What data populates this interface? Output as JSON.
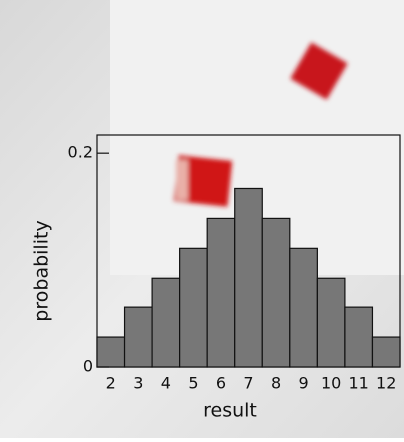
{
  "chart_data": {
    "type": "bar",
    "categories": [
      "2",
      "3",
      "4",
      "5",
      "6",
      "7",
      "8",
      "9",
      "10",
      "11",
      "12"
    ],
    "values": [
      0.028,
      0.056,
      0.083,
      0.111,
      0.139,
      0.167,
      0.139,
      0.111,
      0.083,
      0.056,
      0.028
    ],
    "color": "#777777",
    "xlabel": "result",
    "ylabel": "probability",
    "ylim": [
      0,
      0.217
    ],
    "yticks": [
      0,
      0.2
    ]
  }
}
